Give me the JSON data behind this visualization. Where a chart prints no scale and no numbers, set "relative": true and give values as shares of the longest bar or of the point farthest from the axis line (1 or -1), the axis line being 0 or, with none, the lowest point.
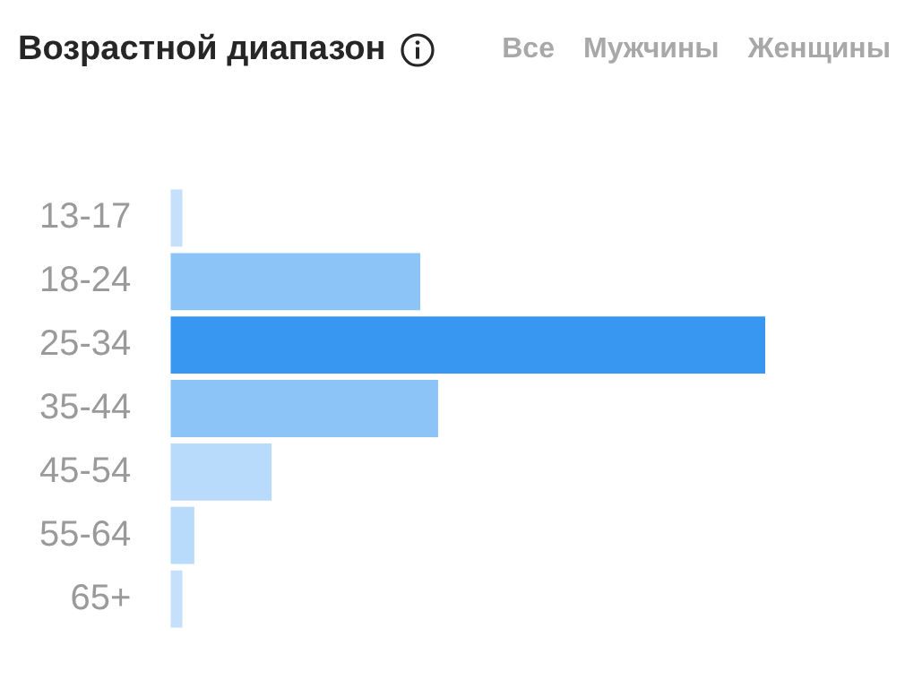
{
  "chart_data": {
    "type": "bar",
    "orientation": "horizontal",
    "relative": true,
    "title": "Возрастной диапазон",
    "annotations": [
      "Все",
      "Мужчины",
      "Женщины"
    ],
    "categories": [
      "13-17",
      "18-24",
      "25-34",
      "35-44",
      "45-54",
      "55-64",
      "65+"
    ],
    "values": [
      0.02,
      0.42,
      1,
      0.45,
      0.17,
      0.04,
      0.02
    ],
    "colors": [
      "#c6e0fb",
      "#8cc4f8",
      "#3897f0",
      "#8cc4f8",
      "#b8dbfb",
      "#b8dbfb",
      "#c6e0fb"
    ],
    "grid": false,
    "legend": false
  }
}
